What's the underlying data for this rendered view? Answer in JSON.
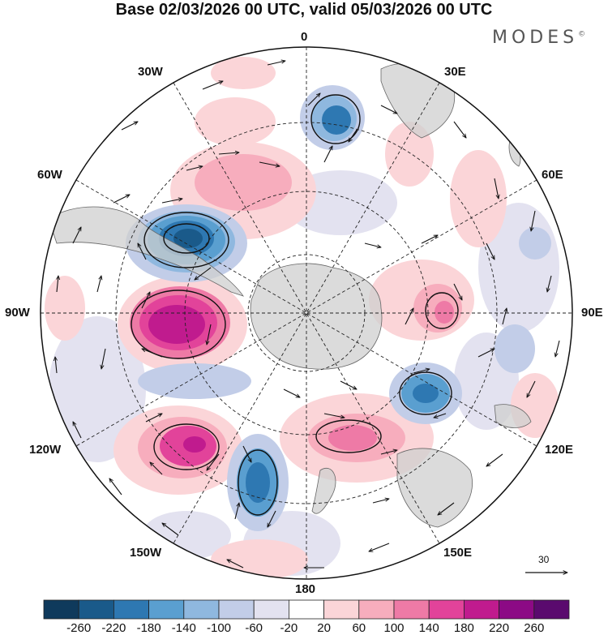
{
  "title": "Base 02/03/2026 00 UTC, valid 05/03/2026 00 UTC",
  "brand": "MODES",
  "brand_mark": "©",
  "longitude_labels": {
    "top": "0",
    "lon_30e": "30E",
    "lon_60e": "60E",
    "lon_90e": "90E",
    "lon_120e": "120E",
    "lon_150e": "150E",
    "bottom": "180",
    "lon_150w": "150W",
    "lon_120w": "120W",
    "lon_90w": "90W",
    "lon_60w": "60W",
    "lon_30w": "30W"
  },
  "reference_vector": "30",
  "colorbar": {
    "ticks": [
      "-260",
      "-220",
      "-180",
      "-140",
      "-100",
      "-60",
      "-20",
      "20",
      "60",
      "100",
      "140",
      "180",
      "220",
      "260"
    ],
    "colors": [
      "#0f3a5c",
      "#1a5a8a",
      "#2e78b2",
      "#5a9fd0",
      "#8fb8df",
      "#c2cde8",
      "#e3e2f0",
      "#ffffff",
      "#fbd5d8",
      "#f7adbd",
      "#ee7aa6",
      "#e2439a",
      "#c01b8e",
      "#8c0a85",
      "#5a0a6e"
    ]
  },
  "colors": {
    "land": "#cfcfcf",
    "coast": "#666666",
    "grid": "#222222",
    "arrow": "#111111"
  }
}
